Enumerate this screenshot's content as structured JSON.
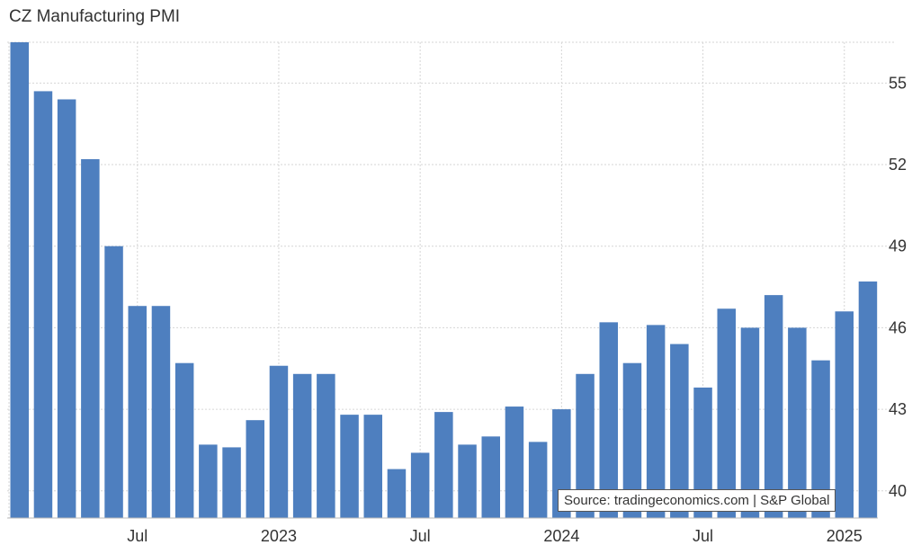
{
  "title": "CZ Manufacturing PMI",
  "source": "Source: tradingeconomics.com | S&P Global",
  "colors": {
    "bar": "#4e7fbf",
    "grid": "#d6d6d6",
    "axis_text": "#333333"
  },
  "chart_data": {
    "type": "bar",
    "title": "CZ Manufacturing PMI",
    "xlabel": "",
    "ylabel": "",
    "ylim": [
      39.0,
      56.5
    ],
    "y_ticks": [
      40,
      43,
      46,
      49,
      52,
      55
    ],
    "x_tick_labels": [
      {
        "label": "Jul",
        "index": 5
      },
      {
        "label": "2023",
        "index": 11
      },
      {
        "label": "Jul",
        "index": 17
      },
      {
        "label": "2024",
        "index": 23
      },
      {
        "label": "Jul",
        "index": 29
      },
      {
        "label": "2025",
        "index": 35
      }
    ],
    "grid": true,
    "legend": "none",
    "categories": [
      "2022-02",
      "2022-03",
      "2022-04",
      "2022-05",
      "2022-06",
      "2022-07",
      "2022-08",
      "2022-09",
      "2022-10",
      "2022-11",
      "2022-12",
      "2023-01",
      "2023-02",
      "2023-03",
      "2023-04",
      "2023-05",
      "2023-06",
      "2023-07",
      "2023-08",
      "2023-09",
      "2023-10",
      "2023-11",
      "2023-12",
      "2024-01",
      "2024-02",
      "2024-03",
      "2024-04",
      "2024-05",
      "2024-06",
      "2024-07",
      "2024-08",
      "2024-09",
      "2024-10",
      "2024-11",
      "2024-12",
      "2025-01",
      "2025-02"
    ],
    "values": [
      56.5,
      54.7,
      54.4,
      52.2,
      49.0,
      46.8,
      46.8,
      44.7,
      41.7,
      41.6,
      42.6,
      44.6,
      44.3,
      44.3,
      42.8,
      42.8,
      40.8,
      41.4,
      42.9,
      41.7,
      42.0,
      43.1,
      41.8,
      43.0,
      44.3,
      46.2,
      44.7,
      46.1,
      45.4,
      43.8,
      46.7,
      46.0,
      47.2,
      46.0,
      44.8,
      46.6,
      47.7
    ]
  }
}
